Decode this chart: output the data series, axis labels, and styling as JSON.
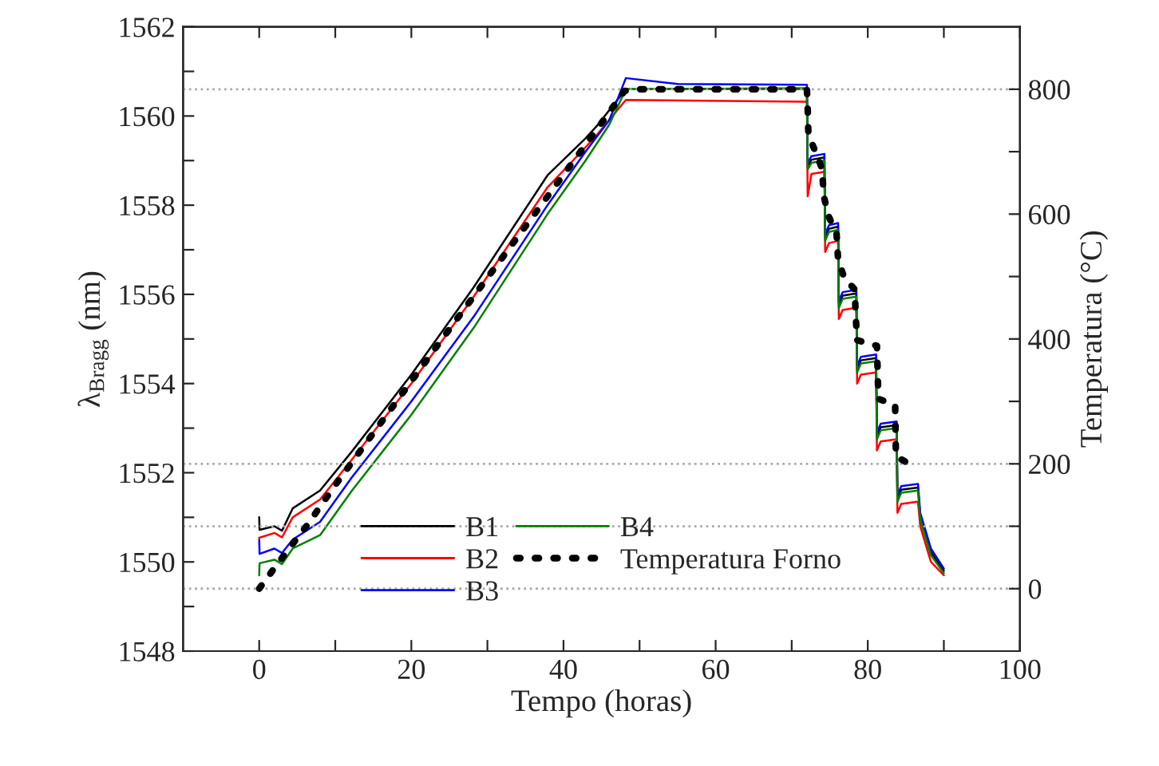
{
  "chart_data": {
    "type": "line",
    "xlabel": "Tempo (horas)",
    "ylabel": "λ$_{Bragg}$ (nm)",
    "y2label": "Temperatura (°C)",
    "xlim": [
      -10,
      100
    ],
    "xticks": [
      0,
      {
        "value": 10,
        "label": null
      },
      20,
      {
        "value": 30,
        "label": null
      },
      40,
      {
        "value": 50,
        "label": null
      },
      60,
      {
        "value": 70,
        "label": null
      },
      80,
      {
        "value": 90,
        "label": null
      },
      100
    ],
    "ylim": [
      1548,
      1562
    ],
    "yticks": [
      1548,
      {
        "value": 1549,
        "label": null
      },
      1550,
      {
        "value": 1551,
        "label": null
      },
      1552,
      {
        "value": 1553,
        "label": null
      },
      1554,
      {
        "value": 1555,
        "label": null
      },
      1556,
      {
        "value": 1557,
        "label": null
      },
      1558,
      {
        "value": 1559,
        "label": null
      },
      1560,
      {
        "value": 1561,
        "label": null
      },
      1562
    ],
    "y2lim": [
      -100,
      900
    ],
    "y2ticks": [
      0,
      {
        "value": 100,
        "label": null
      },
      200,
      {
        "value": 300,
        "label": null
      },
      400,
      {
        "value": 500,
        "label": null
      },
      600,
      {
        "value": 700,
        "label": null
      },
      800
    ],
    "legend": "bottom",
    "grid": false,
    "ref_lines": [
      {
        "axis": "y2",
        "value": 0,
        "color": "#aaaaaa",
        "line_style": "dotted"
      },
      {
        "axis": "y2",
        "value": 100,
        "color": "#aaaaaa",
        "line_style": "dotted"
      },
      {
        "axis": "y2",
        "value": 200,
        "color": "#aaaaaa",
        "line_style": "dotted"
      },
      {
        "axis": "y2",
        "value": 800,
        "color": "#aaaaaa",
        "line_style": "dotted"
      }
    ],
    "series": [
      {
        "name": "B1",
        "color": "#000000",
        "line_style": "solid",
        "x": [
          0,
          0.05,
          2,
          3,
          4.4,
          8,
          12.2,
          20,
          28.2,
          37.9,
          42.9,
          44.5,
          48.2,
          72,
          72.1,
          72.6,
          74.3,
          74.4,
          74.9,
          76.1,
          76.2,
          76.7,
          78.5,
          78.6,
          79.1,
          81.1,
          81.2,
          81.7,
          83.8,
          83.9,
          84.4,
          86.6,
          86.9,
          88.3,
          90
        ],
        "values": [
          1551.0,
          1550.72,
          1550.8,
          1550.7,
          1551.2,
          1551.6,
          1552.48,
          1554.2,
          1556.16,
          1558.67,
          1559.5,
          1559.8,
          1560.6,
          1560.62,
          1558.87,
          1559.02,
          1559.07,
          1557.27,
          1557.47,
          1557.52,
          1555.77,
          1555.97,
          1556.02,
          1554.32,
          1554.52,
          1554.57,
          1552.82,
          1553.02,
          1553.07,
          1551.42,
          1551.62,
          1551.67,
          1551.02,
          1550.22,
          1549.8
        ]
      },
      {
        "name": "B2",
        "color": "#ff0000",
        "line_style": "solid",
        "x": [
          0,
          2,
          3,
          4.4,
          8,
          12.2,
          20,
          28.2,
          37.9,
          42.9,
          44.5,
          48.2,
          72,
          72.1,
          72.6,
          74.3,
          74.4,
          74.9,
          76.1,
          76.2,
          76.7,
          78.5,
          78.6,
          79.1,
          81.1,
          81.2,
          81.7,
          83.8,
          83.9,
          84.4,
          86.6,
          86.9,
          88.3,
          90
        ],
        "values": [
          1550.54,
          1550.65,
          1550.55,
          1551.0,
          1551.4,
          1552.3,
          1554.0,
          1555.95,
          1558.4,
          1559.3,
          1559.6,
          1560.36,
          1560.32,
          1558.2,
          1558.7,
          1558.75,
          1556.95,
          1557.15,
          1557.2,
          1555.45,
          1555.65,
          1555.7,
          1554.0,
          1554.2,
          1554.25,
          1552.5,
          1552.7,
          1552.75,
          1551.1,
          1551.3,
          1551.35,
          1550.8,
          1550.0,
          1549.7
        ]
      },
      {
        "name": "B3",
        "color": "#0000ff",
        "line_style": "solid",
        "x": [
          0,
          0.05,
          2,
          3,
          4.4,
          8,
          12.2,
          20,
          28.2,
          37.9,
          42.9,
          46,
          48.2,
          55,
          72,
          72.1,
          72.6,
          74.3,
          74.4,
          74.9,
          76.1,
          76.2,
          76.7,
          78.5,
          78.6,
          79.1,
          81.1,
          81.2,
          81.7,
          83.8,
          83.9,
          84.4,
          86.6,
          86.9,
          88.3,
          90
        ],
        "values": [
          1550.5,
          1550.18,
          1550.3,
          1550.2,
          1550.5,
          1550.9,
          1551.9,
          1553.6,
          1555.5,
          1558.0,
          1559.2,
          1559.9,
          1560.85,
          1560.72,
          1560.7,
          1558.95,
          1559.1,
          1559.15,
          1557.35,
          1557.55,
          1557.6,
          1555.85,
          1556.05,
          1556.1,
          1554.4,
          1554.6,
          1554.65,
          1552.9,
          1553.1,
          1553.15,
          1551.5,
          1551.7,
          1551.75,
          1551.1,
          1550.3,
          1549.85
        ]
      },
      {
        "name": "B4",
        "color": "#008000",
        "line_style": "solid",
        "x": [
          0,
          0.05,
          2,
          3,
          4.4,
          8,
          12.2,
          20,
          28.2,
          37.9,
          42.9,
          46,
          48.2,
          72,
          72.1,
          72.6,
          74.3,
          74.4,
          74.9,
          76.1,
          76.2,
          76.7,
          78.5,
          78.6,
          79.1,
          81.1,
          81.2,
          81.7,
          83.8,
          83.9,
          84.4,
          86.6,
          86.9,
          88.3,
          90
        ],
        "values": [
          1549.7,
          1549.97,
          1550.05,
          1549.95,
          1550.3,
          1550.6,
          1551.6,
          1553.3,
          1555.25,
          1557.8,
          1559.0,
          1559.8,
          1560.6,
          1560.6,
          1558.8,
          1558.95,
          1559.0,
          1557.2,
          1557.4,
          1557.45,
          1555.7,
          1555.9,
          1555.95,
          1554.25,
          1554.45,
          1554.5,
          1552.75,
          1552.95,
          1553.0,
          1551.35,
          1551.55,
          1551.6,
          1550.95,
          1550.15,
          1549.75
        ]
      },
      {
        "name": "Temperatura Forno",
        "color": "#000000",
        "axis": "y2",
        "line_style": "dotted",
        "x": [
          0,
          2,
          4.1,
          6.2,
          10,
          24,
          38,
          42,
          44,
          46,
          48,
          50,
          72,
          72.1,
          72.2,
          73.2,
          74,
          74.2,
          74.8,
          75.9,
          76.1,
          76.9,
          78.3,
          78.4,
          78.6,
          81.2,
          81.3,
          81.4,
          83.6,
          83.7,
          85.7
        ],
        "values": [
          0,
          33,
          67,
          100,
          166,
          399,
          630,
          696,
          729,
          763,
          797,
          800,
          800,
          769,
          726,
          698,
          672,
          630,
          598,
          568,
          527,
          498,
          479,
          440,
          398,
          389,
          347,
          304,
          294,
          212,
          198
        ]
      }
    ]
  }
}
